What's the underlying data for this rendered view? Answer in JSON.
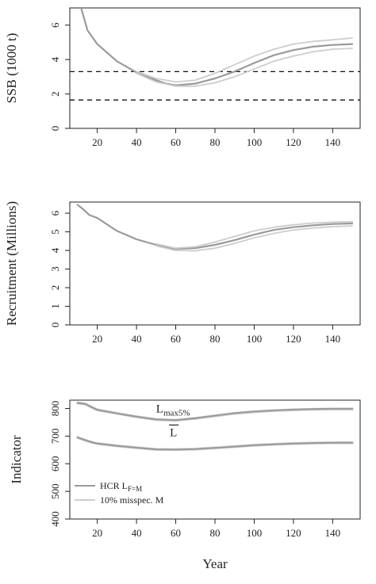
{
  "chart_data": [
    {
      "id": "ssb",
      "type": "line",
      "title": "",
      "xlabel": "",
      "ylabel": "SSB (1000 t)",
      "xlim": [
        6,
        154
      ],
      "ylim": [
        0,
        7
      ],
      "xticks": [
        20,
        40,
        60,
        80,
        100,
        120,
        140
      ],
      "yticks": [
        0,
        2,
        4,
        6
      ],
      "grid": false,
      "hlines": [
        {
          "y": 3.3,
          "style": "dashed",
          "color": "#111111"
        },
        {
          "y": 1.65,
          "style": "dashed",
          "color": "#111111"
        }
      ],
      "series": [
        {
          "color": "#9a9a9a",
          "width": 2.2,
          "x": [
            10,
            15,
            20,
            30,
            40,
            50,
            55,
            60,
            65,
            70,
            80,
            90,
            100,
            110,
            120,
            130,
            140,
            150
          ],
          "y": [
            7.7,
            5.7,
            4.9,
            3.9,
            3.25,
            2.8,
            2.6,
            2.5,
            2.55,
            2.6,
            2.9,
            3.3,
            3.8,
            4.25,
            4.55,
            4.75,
            4.85,
            4.9
          ]
        },
        {
          "color": "#cdcdcd",
          "width": 1.8,
          "x": [
            40,
            50,
            60,
            70,
            80,
            90,
            100,
            110,
            120,
            130,
            140,
            150
          ],
          "y": [
            3.3,
            2.9,
            2.7,
            2.8,
            3.2,
            3.7,
            4.2,
            4.6,
            4.9,
            5.05,
            5.15,
            5.25
          ]
        },
        {
          "color": "#cdcdcd",
          "width": 1.8,
          "x": [
            40,
            50,
            60,
            70,
            80,
            90,
            100,
            110,
            120,
            130,
            140,
            150
          ],
          "y": [
            3.2,
            2.7,
            2.45,
            2.45,
            2.65,
            3.0,
            3.45,
            3.9,
            4.2,
            4.45,
            4.6,
            4.65
          ]
        }
      ]
    },
    {
      "id": "recruitment",
      "type": "line",
      "title": "",
      "xlabel": "",
      "ylabel": "Recruitment (Millions)",
      "xlim": [
        6,
        154
      ],
      "ylim": [
        0,
        6.6
      ],
      "xticks": [
        20,
        40,
        60,
        80,
        100,
        120,
        140
      ],
      "yticks": [
        0,
        1,
        2,
        3,
        4,
        5,
        6
      ],
      "grid": false,
      "series": [
        {
          "color": "#9a9a9a",
          "width": 2.2,
          "x": [
            10,
            13,
            16,
            20,
            30,
            40,
            50,
            60,
            70,
            80,
            90,
            100,
            110,
            120,
            130,
            140,
            150
          ],
          "y": [
            6.45,
            6.2,
            5.9,
            5.75,
            5.05,
            4.6,
            4.3,
            4.08,
            4.12,
            4.3,
            4.55,
            4.85,
            5.1,
            5.25,
            5.35,
            5.42,
            5.45
          ]
        },
        {
          "color": "#cdcdcd",
          "width": 1.8,
          "x": [
            50,
            60,
            70,
            80,
            90,
            100,
            110,
            120,
            130,
            140,
            150
          ],
          "y": [
            4.35,
            4.12,
            4.2,
            4.45,
            4.75,
            5.05,
            5.25,
            5.38,
            5.47,
            5.52,
            5.55
          ]
        },
        {
          "color": "#cdcdcd",
          "width": 1.8,
          "x": [
            50,
            60,
            70,
            80,
            90,
            100,
            110,
            120,
            130,
            140,
            150
          ],
          "y": [
            4.25,
            4.0,
            3.98,
            4.12,
            4.38,
            4.68,
            4.92,
            5.1,
            5.2,
            5.28,
            5.32
          ]
        }
      ]
    },
    {
      "id": "indicator",
      "type": "line",
      "title": "",
      "xlabel": "Year",
      "ylabel": "Indicator",
      "xlim": [
        6,
        154
      ],
      "ylim": [
        400,
        830
      ],
      "xticks": [
        20,
        40,
        60,
        80,
        100,
        120,
        140
      ],
      "yticks": [
        400,
        500,
        600,
        700,
        800
      ],
      "grid": false,
      "annotations": [
        {
          "text": "L",
          "sub": "max5%",
          "x": 50,
          "y": 785
        },
        {
          "text": "L",
          "overline": true,
          "x": 57,
          "y": 700
        }
      ],
      "legend": {
        "position": "bottom-left",
        "entries": [
          {
            "label": "HCR L",
            "sub": "F=M",
            "color": "#9a9a9a"
          },
          {
            "label": "10% misspec. M",
            "color": "#cdcdcd"
          }
        ]
      },
      "series": [
        {
          "color": "#cdcdcd",
          "width": 3.5,
          "x": [
            10,
            14,
            17,
            20,
            30,
            40,
            50,
            60,
            70,
            80,
            90,
            100,
            110,
            120,
            130,
            140,
            150
          ],
          "y": [
            820,
            816,
            805,
            795,
            782,
            770,
            760,
            757,
            764,
            773,
            782,
            788,
            792,
            795,
            797,
            798,
            798
          ]
        },
        {
          "color": "#9a9a9a",
          "width": 2.0,
          "x": [
            10,
            14,
            17,
            20,
            30,
            40,
            50,
            60,
            70,
            80,
            90,
            100,
            110,
            120,
            130,
            140,
            150
          ],
          "y": [
            820,
            816,
            805,
            795,
            782,
            770,
            760,
            758,
            765,
            774,
            783,
            789,
            793,
            796,
            798,
            799,
            799
          ]
        },
        {
          "color": "#cdcdcd",
          "width": 3.5,
          "x": [
            10,
            14,
            17,
            20,
            30,
            40,
            50,
            60,
            70,
            80,
            90,
            100,
            110,
            120,
            130,
            140,
            150
          ],
          "y": [
            695,
            685,
            678,
            673,
            665,
            658,
            652,
            651,
            653,
            657,
            662,
            667,
            670,
            673,
            675,
            676,
            676
          ]
        },
        {
          "color": "#9a9a9a",
          "width": 2.0,
          "x": [
            10,
            14,
            17,
            20,
            30,
            40,
            50,
            60,
            70,
            80,
            90,
            100,
            110,
            120,
            130,
            140,
            150
          ],
          "y": [
            695,
            685,
            678,
            673,
            665,
            658,
            652,
            651,
            653,
            657,
            662,
            667,
            670,
            673,
            675,
            676,
            676
          ]
        }
      ]
    }
  ]
}
